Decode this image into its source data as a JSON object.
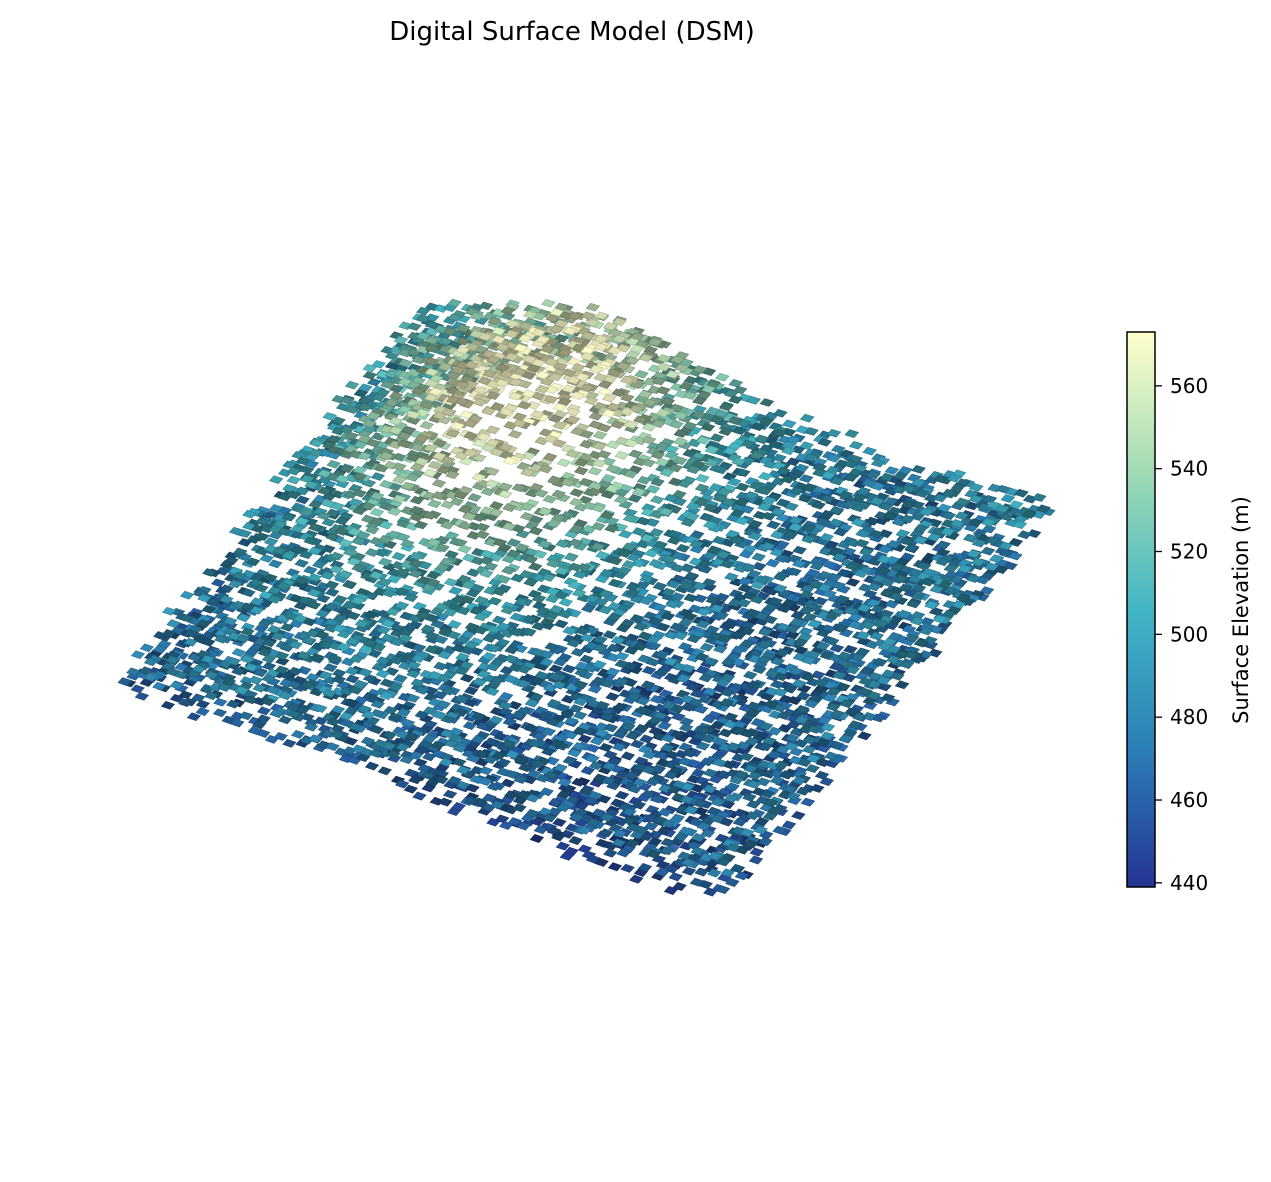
{
  "chart_data": {
    "type": "surface3d",
    "title": "Digital Surface Model (DSM)",
    "xlabel": "",
    "ylabel": "",
    "zlabel": "",
    "axes_visible": false,
    "grid": false,
    "colormap": "YlGnBu_r",
    "colormap_stops": [
      "#253494",
      "#2c7fb8",
      "#41b6c4",
      "#a1dab4",
      "#ffffcc"
    ],
    "colorbar": {
      "label": "Surface Elevation (m)",
      "min": 439,
      "max": 573,
      "ticks": [
        440,
        460,
        480,
        500,
        520,
        540,
        560
      ],
      "tick_labels": [
        "440",
        "460",
        "480",
        "500",
        "520",
        "540",
        "560"
      ],
      "placement": "right"
    },
    "surface": {
      "base_elevation_range": [
        455,
        505
      ],
      "peak_elevation": 570,
      "peak_location": "back-left",
      "texture": "rough canopy"
    }
  }
}
